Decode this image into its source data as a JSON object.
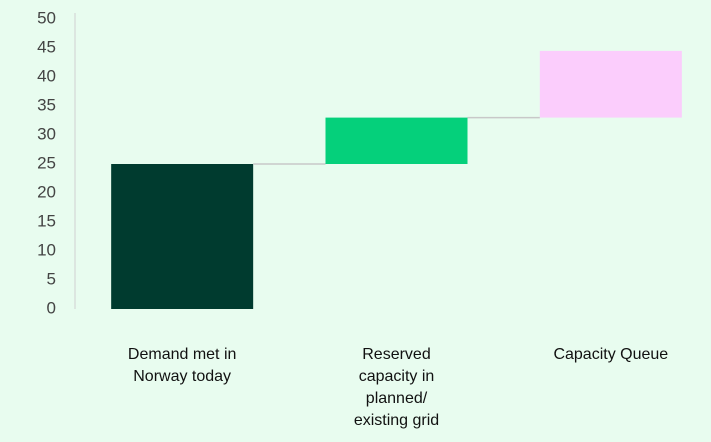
{
  "chart_data": {
    "type": "waterfall",
    "categories": [
      "Demand met in Norway today",
      "Reserved capacity in planned/ existing grid",
      "Capacity Queue"
    ],
    "values": [
      25,
      8,
      11.5
    ],
    "colors": [
      "#003b2f",
      "#05d07b",
      "#fbcdfc"
    ],
    "ylim": [
      0,
      50
    ],
    "yticks": [
      0,
      5,
      10,
      15,
      20,
      25,
      30,
      35,
      40,
      45,
      50
    ],
    "grid": false
  }
}
